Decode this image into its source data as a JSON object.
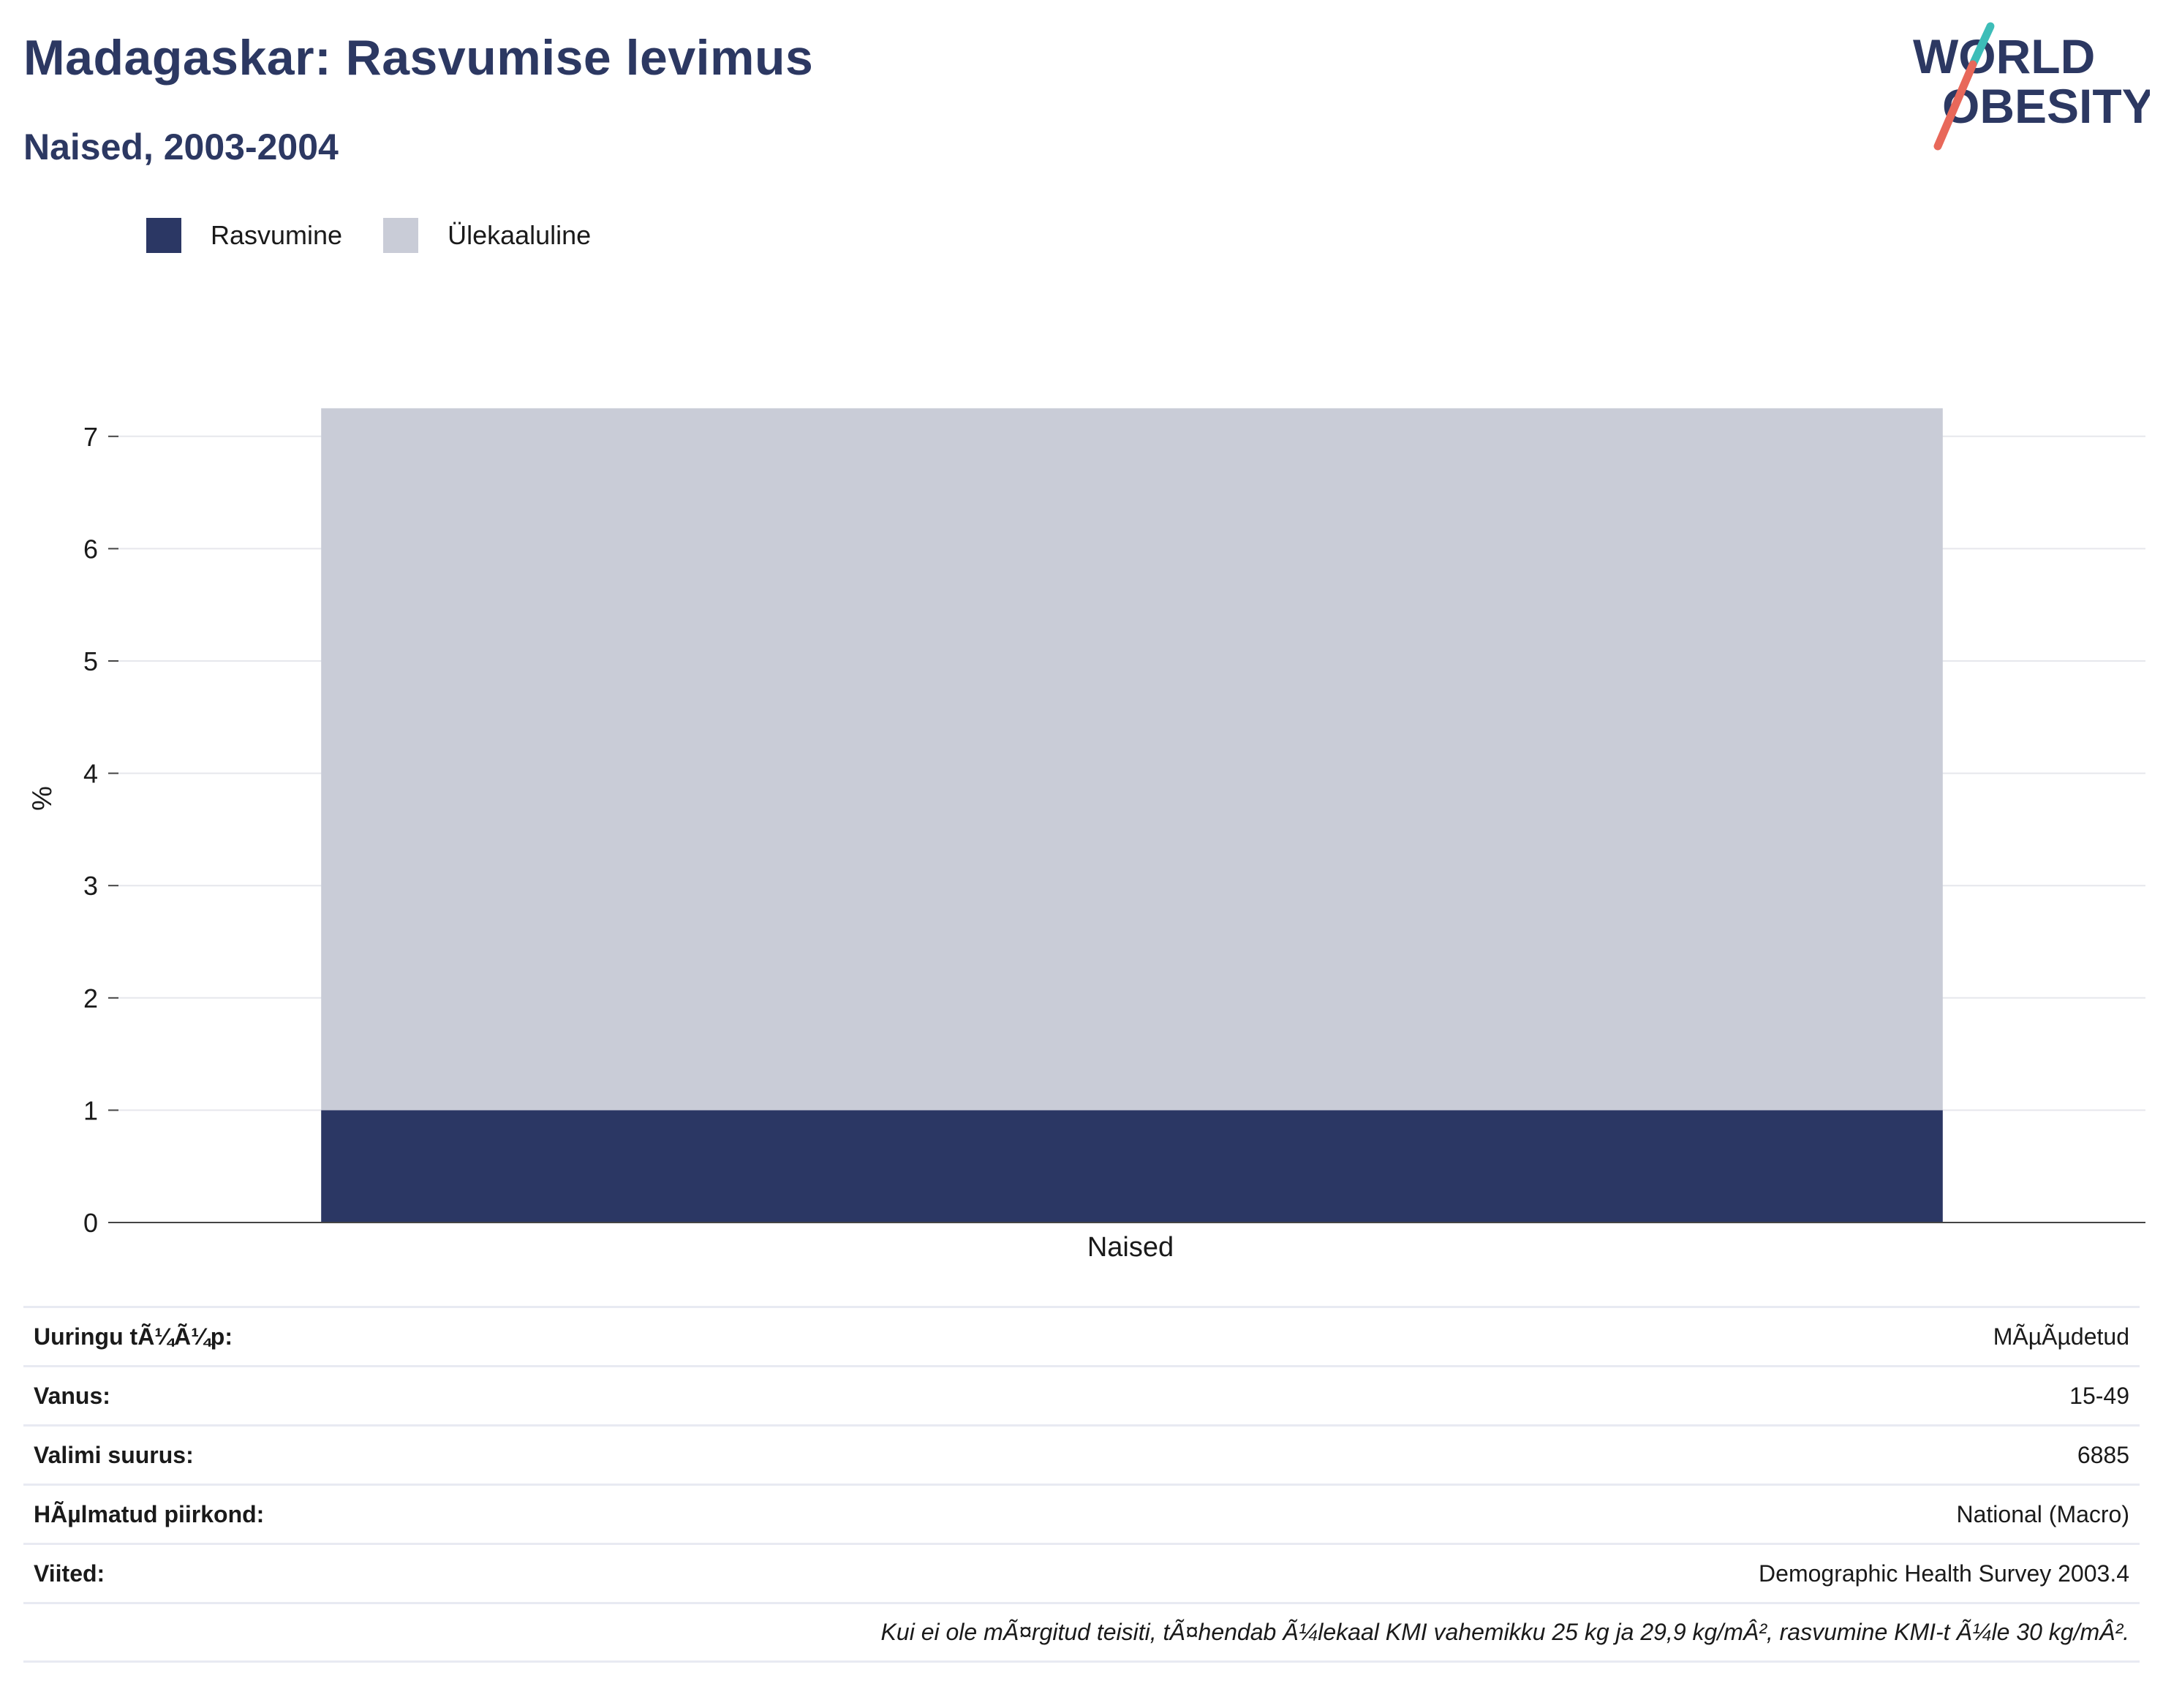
{
  "header": {
    "title": "Madagaskar: Rasvumise levimus",
    "subtitle": "Naised, 2003-2004"
  },
  "logo": {
    "line1": "WORLD",
    "line2": "OBESITY",
    "accent_teal": "#3dbdb8",
    "accent_coral": "#e8685a"
  },
  "colors": {
    "rasvumine": "#2b3764",
    "ylekaaluline": "#c9ccd7",
    "title": "#2c3862"
  },
  "legend": [
    {
      "label": "Rasvumine",
      "color": "#2b3764"
    },
    {
      "label": "Ülekaaluline",
      "color": "#c9ccd7"
    }
  ],
  "chart_data": {
    "type": "bar",
    "stacked": true,
    "categories": [
      "Naised"
    ],
    "series": [
      {
        "name": "Rasvumine",
        "values": [
          1.0
        ]
      },
      {
        "name": "Ülekaaluline",
        "values": [
          6.25
        ]
      }
    ],
    "ylabel": "%",
    "ylim": [
      0,
      7.2
    ],
    "yticks": [
      0,
      1,
      2,
      3,
      4,
      5,
      6,
      7
    ],
    "grid": true,
    "legend_position": "top-left"
  },
  "info_table": [
    {
      "label": "Uuringu tÃ¼Ã¼p:",
      "value": "MÃµÃµdetud"
    },
    {
      "label": "Vanus:",
      "value": "15-49"
    },
    {
      "label": "Valimi suurus:",
      "value": "6885"
    },
    {
      "label": "HÃµlmatud piirkond:",
      "value": "National (Macro)"
    },
    {
      "label": "Viited:",
      "value": "Demographic Health Survey 2003.4"
    }
  ],
  "footnote": "Kui ei ole mÃ¤rgitud teisiti, tÃ¤hendab Ã¼lekaal KMI vahemikku 25 kg ja 29,9 kg/mÂ², rasvumine KMI-t Ã¼le 30 kg/mÂ²."
}
